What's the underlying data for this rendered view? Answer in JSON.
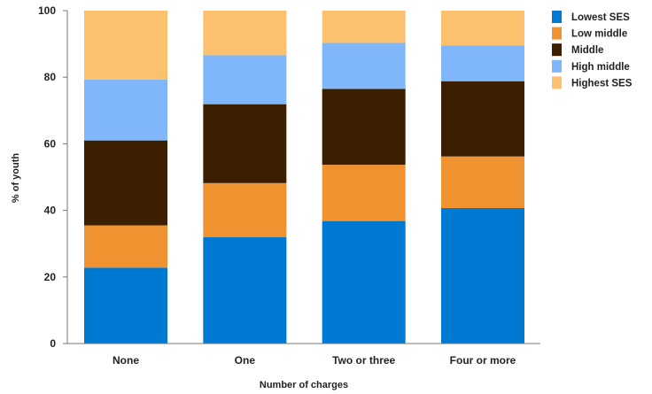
{
  "chart_data": {
    "type": "bar",
    "stacked": true,
    "categories": [
      "None",
      "One",
      "Two or three",
      "Four or more"
    ],
    "series": [
      {
        "name": "Lowest SES",
        "color": "#0079D2",
        "values": [
          22.8,
          32.0,
          36.8,
          40.7
        ]
      },
      {
        "name": "Low middle",
        "color": "#F0922F",
        "values": [
          12.7,
          16.2,
          16.9,
          15.5
        ]
      },
      {
        "name": "Middle",
        "color": "#3C1E00",
        "values": [
          25.5,
          23.7,
          22.8,
          22.6
        ]
      },
      {
        "name": "High middle",
        "color": "#7FB7FA",
        "values": [
          18.3,
          14.7,
          13.8,
          10.7
        ]
      },
      {
        "name": "Highest SES",
        "color": "#FCC16E",
        "values": [
          20.7,
          13.4,
          9.7,
          10.5
        ]
      }
    ],
    "xlabel": "Number of charges",
    "ylabel": "% of youth",
    "ylim": [
      0,
      100
    ],
    "yticks": [
      0,
      20,
      40,
      60,
      80,
      100
    ],
    "legend": "top-right",
    "grid": false
  }
}
